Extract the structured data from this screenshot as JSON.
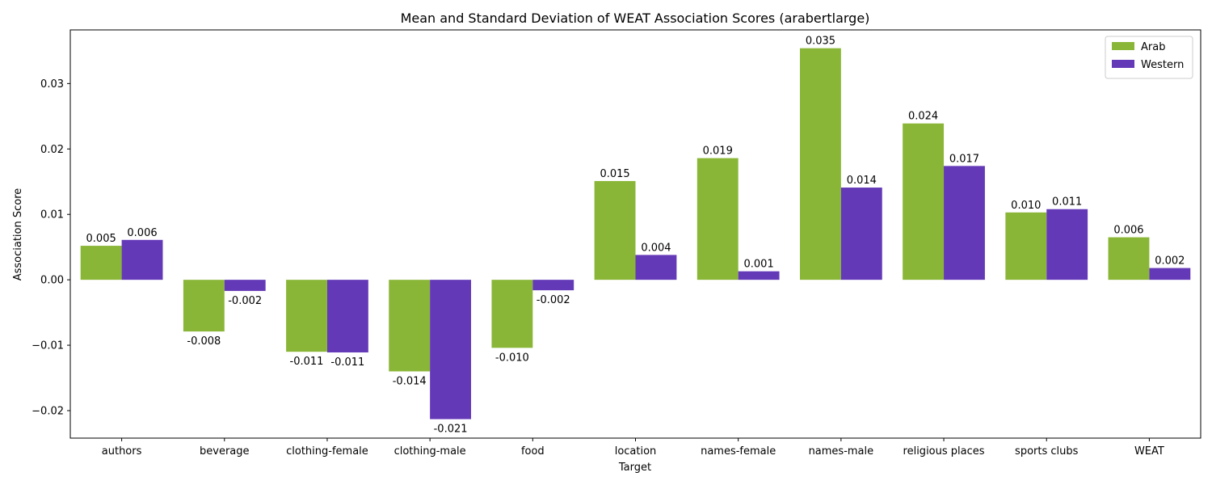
{
  "chart_data": {
    "type": "bar",
    "title": "Mean and Standard Deviation of WEAT Association Scores (arabertlarge)",
    "xlabel": "Target",
    "ylabel": "Association Score",
    "ylim": [
      -0.0242,
      0.0382
    ],
    "yticks": [
      -0.02,
      -0.01,
      0.0,
      0.01,
      0.02,
      0.03
    ],
    "ytick_labels": [
      "−0.02",
      "−0.01",
      "0.00",
      "0.01",
      "0.02",
      "0.03"
    ],
    "categories": [
      "authors",
      "beverage",
      "clothing-female",
      "clothing-male",
      "food",
      "location",
      "names-female",
      "names-male",
      "religious places",
      "sports clubs",
      "WEAT"
    ],
    "series": [
      {
        "name": "Arab",
        "color": "#8ab638",
        "values": [
          0.0052,
          -0.0079,
          -0.011,
          -0.014,
          -0.0104,
          0.0151,
          0.0186,
          0.0354,
          0.0239,
          0.0103,
          0.0065
        ],
        "labels": [
          "0.005",
          "-0.008",
          "-0.011",
          "-0.014",
          "-0.010",
          "0.015",
          "0.019",
          "0.035",
          "0.024",
          "0.010",
          "0.006"
        ]
      },
      {
        "name": "Western",
        "color": "#6439b8",
        "values": [
          0.0061,
          -0.0017,
          -0.0111,
          -0.0213,
          -0.0016,
          0.0038,
          0.0013,
          0.0141,
          0.0174,
          0.0108,
          0.0018
        ],
        "labels": [
          "0.006",
          "-0.002",
          "-0.011",
          "-0.021",
          "-0.002",
          "0.004",
          "0.001",
          "0.014",
          "0.017",
          "0.011",
          "0.002"
        ]
      }
    ],
    "legend_position": "top-right",
    "grid": false
  }
}
